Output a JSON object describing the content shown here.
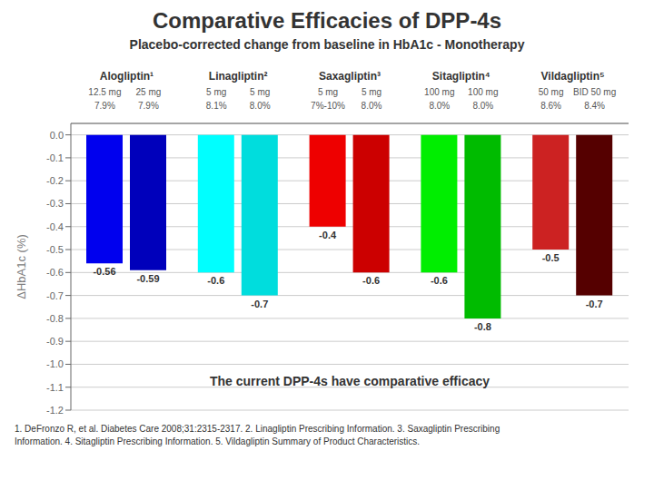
{
  "chart_data": {
    "type": "bar",
    "title": "Comparative Efficacies of DPP-4s",
    "subtitle": "Placebo-corrected change from baseline in HbA1c - Monotherapy",
    "ylabel": "ΔHbA1c (%)",
    "categories": [
      "Alogliptin¹",
      "Linagliptin²",
      "Saxagliptin³",
      "Sitagliptin⁴",
      "Vildagliptin⁵"
    ],
    "series": [
      {
        "values": [
          -0.56,
          -0.6,
          -0.4,
          -0.6,
          -0.5
        ],
        "colors": [
          "#0000ee",
          "#00ffff",
          "#ee0000",
          "#00ee00",
          "#cc2222"
        ],
        "dose_labels": [
          "12.5 mg",
          "5 mg",
          "5 mg",
          "100 mg",
          "50 mg"
        ],
        "baseline_labels": [
          "7.9%",
          "8.1%",
          "7%-10%",
          "8.0%",
          "8.6%"
        ]
      },
      {
        "values": [
          -0.59,
          -0.7,
          -0.6,
          -0.8,
          -0.7
        ],
        "colors": [
          "#0000bb",
          "#00dddd",
          "#cc0000",
          "#00bb00",
          "#550000"
        ],
        "dose_labels": [
          "25 mg",
          "5 mg",
          "5 mg",
          "100 mg",
          "BID 50 mg"
        ],
        "baseline_labels": [
          "7.9%",
          "8.0%",
          "8.0%",
          "8.0%",
          "8.4%"
        ]
      }
    ],
    "ylim": [
      -1.2,
      0.05
    ],
    "yticks": [
      -1.2,
      -1.1,
      {
        "value": -1,
        "label": "-1.0"
      },
      -0.9,
      -0.8,
      -0.7,
      -0.6,
      -0.5,
      -0.4,
      -0.3,
      -0.2,
      -0.1,
      {
        "value": 0,
        "label": "0.0"
      }
    ],
    "grid": true,
    "data_labels": true,
    "annotations": [
      "The current DPP-4s have comparative efficacy"
    ],
    "footnotes": [
      "1.  DeFronzo R, et al. Diabetes Care 2008;31:2315-2317. 2. Linagliptin Prescribing Information. 3. Saxagliptin Prescribing",
      "Information. 4. Sitagliptin Prescribing Information. 5. Vildagliptin Summary of Product Characteristics."
    ]
  }
}
